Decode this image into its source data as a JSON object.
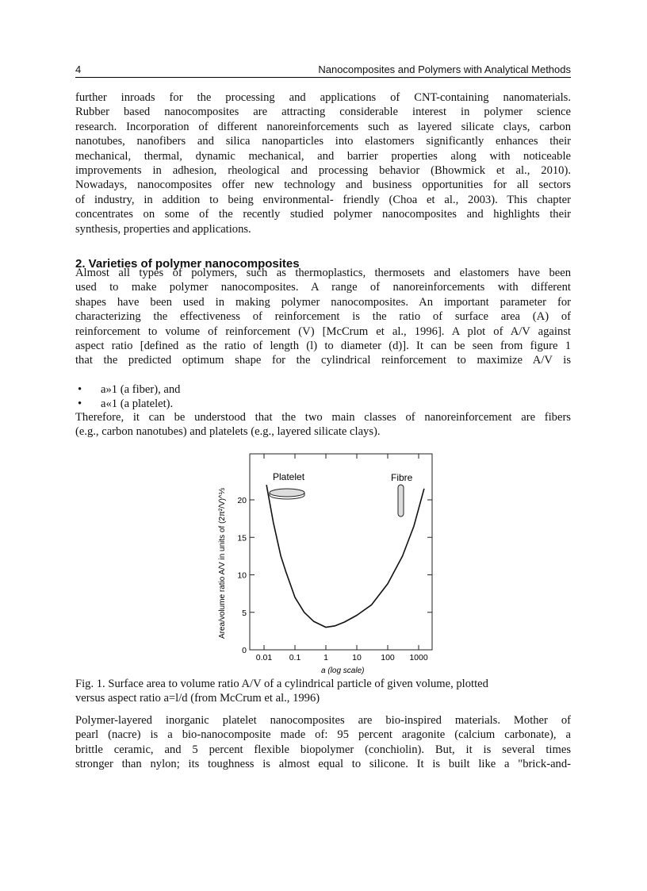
{
  "header": {
    "page_number": "4",
    "title": "Nanocomposites and Polymers with Analytical Methods"
  },
  "para1": [
    "further inroads for the processing and applications of CNT-containing nanomaterials.",
    "Rubber based nanocomposites are attracting considerable interest in polymer science",
    "research. Incorporation of different nanoreinforcements such as layered silicate clays, carbon",
    "nanotubes, nanofibers and silica nanoparticles into elastomers significantly enhances their",
    "mechanical, thermal, dynamic mechanical, and barrier properties along with noticeable",
    "improvements in adhesion, rheological and processing behavior (Bhowmick et al., 2010).",
    "Nowadays, nanocomposites offer new technology and business opportunities for all sectors",
    "of industry, in addition to being environmental- friendly (Choa et al., 2003). This chapter",
    "concentrates on some of the recently studied polymer nanocomposites and highlights their",
    "synthesis, properties and applications."
  ],
  "section_heading": "2. Varieties of polymer nanocomposites",
  "para2": [
    "Almost all types of polymers, such as thermoplastics, thermosets and elastomers have been",
    "used to make polymer nanocomposites. A range of nanoreinforcements with different",
    "shapes have been used in making polymer nanocomposites. An important parameter for",
    "characterizing the effectiveness of reinforcement is the ratio of surface area (A) of",
    "reinforcement to volume of reinforcement (V) [McCrum et al., 1996]. A plot of A/V against",
    "aspect ratio [defined as the ratio of length (l) to diameter (d)]. It can be seen from figure 1",
    "that the predicted optimum shape for the cylindrical reinforcement to maximize A/V is"
  ],
  "bullets": [
    "a»1 (a fiber), and",
    "a«1 (a platelet)."
  ],
  "para3": [
    "Therefore, it can be understood that the two main classes of nanoreinforcement are fibers",
    "(e.g., carbon nanotubes) and platelets (e.g., layered silicate clays)."
  ],
  "caption": [
    "Fig. 1. Surface area to volume ratio A/V of a cylindrical particle of given volume, plotted",
    "versus aspect ratio a=l/d (from McCrum et al., 1996)"
  ],
  "para4": [
    "Polymer-layered inorganic platelet nanocomposites are bio-inspired materials. Mother of",
    "pearl (nacre) is a bio-nanocomposite made of: 95 percent aragonite (calcium carbonate), a",
    "brittle ceramic, and 5 percent flexible biopolymer (conchiolin). But, it is several times",
    "stronger than nylon; its toughness is almost equal to silicone. It is built like a \"brick-and-"
  ],
  "chart_data": {
    "type": "line",
    "xlabel": "a (log scale)",
    "ylabel": "Area/volume ratio A/V in units of (2π²/V)^⅓",
    "x_scale": "log",
    "xlim": [
      0.005,
      2500
    ],
    "ylim": [
      0,
      25
    ],
    "x_ticks": [
      "0.01",
      "0.1",
      "1",
      "10",
      "100",
      "1000"
    ],
    "y_ticks": [
      "0",
      "5",
      "10",
      "15",
      "20"
    ],
    "annotations": [
      "Platelet",
      "Fibre"
    ],
    "grid": false,
    "series": [
      {
        "x": [
          0.012,
          0.02,
          0.035,
          0.05,
          0.1,
          0.2,
          0.4,
          1,
          2,
          4,
          10,
          30,
          100,
          300,
          700,
          1500
        ],
        "y": [
          22,
          17,
          12.5,
          10.5,
          7,
          5,
          3.8,
          3,
          3.2,
          3.7,
          4.6,
          6,
          8.8,
          12.5,
          16.5,
          21.5
        ]
      }
    ]
  }
}
